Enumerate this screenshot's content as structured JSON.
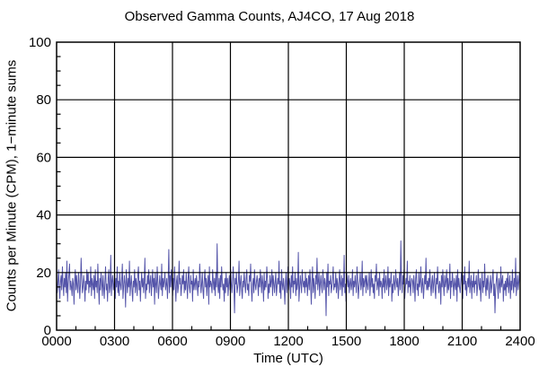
{
  "title": "Observed Gamma Counts, AJ4CO, 17 Aug 2018",
  "chart_data": {
    "type": "line",
    "title": "Observed Gamma Counts, AJ4CO, 17 Aug 2018",
    "xlabel": "Time (UTC)",
    "ylabel": "Counts per Minute (CPM), 1−minute sums",
    "x_tick_labels": [
      "0000",
      "0300",
      "0600",
      "0900",
      "1200",
      "1500",
      "1800",
      "2100",
      "2400"
    ],
    "xlim_minutes": [
      0,
      1440
    ],
    "x_major_step_minutes": 180,
    "x_minor_step_minutes": 60,
    "ylim": [
      0,
      100
    ],
    "y_major_step": 20,
    "y_minor_step": 5,
    "grid": true,
    "legend": "none",
    "colors": {
      "line": "#4545a2",
      "grid": "#000000",
      "text": "#000000",
      "background": "#ffffff"
    },
    "series": [
      {
        "name": "gamma counts, 1-minute sums",
        "sample_interval_minutes": 2,
        "approx_mean": 16.5,
        "approx_range": [
          5,
          31
        ],
        "values": [
          18,
          13,
          16,
          21,
          15,
          11,
          17,
          19,
          14,
          22,
          16,
          12,
          18,
          15,
          20,
          13,
          24,
          10,
          16,
          19,
          23,
          14,
          17,
          15,
          12,
          18,
          16,
          9,
          17,
          21,
          14,
          19,
          15,
          13,
          20,
          17,
          11,
          16,
          25,
          18,
          13,
          15,
          19,
          16,
          10,
          17,
          14,
          21,
          16,
          20,
          13,
          17,
          15,
          22,
          12,
          18,
          16,
          14,
          19,
          11,
          21,
          15,
          17,
          13,
          23,
          16,
          9,
          18,
          14,
          20,
          17,
          12,
          19,
          15,
          11,
          17,
          22,
          14,
          16,
          10,
          18,
          21,
          13,
          15,
          26,
          12,
          17,
          19,
          14,
          16,
          20,
          11,
          18,
          15,
          22,
          13,
          17,
          12,
          20,
          16,
          14,
          18,
          23,
          11,
          15,
          19,
          16,
          8,
          21,
          17,
          13,
          18,
          15,
          24,
          12,
          16,
          19,
          14,
          10,
          17,
          15,
          21,
          13,
          18,
          16,
          12,
          19,
          22,
          14,
          17,
          10,
          16,
          20,
          15,
          18,
          13,
          17,
          25,
          11,
          16,
          14,
          19,
          16,
          21,
          13,
          17,
          19,
          12,
          16,
          21,
          15,
          18,
          9,
          20,
          16,
          13,
          22,
          17,
          11,
          15,
          19,
          16,
          14,
          23,
          12,
          18,
          15,
          17,
          20,
          14,
          16,
          18,
          11,
          17,
          28,
          13,
          19,
          15,
          21,
          16,
          12,
          18,
          14,
          22,
          16,
          10,
          17,
          19,
          13,
          15,
          24,
          16,
          18,
          12,
          15,
          19,
          16,
          21,
          13,
          17,
          14,
          20,
          16,
          11,
          18,
          22,
          15,
          13,
          19,
          16,
          17,
          10,
          21,
          14,
          16,
          18,
          14,
          19,
          16,
          12,
          17,
          15,
          23,
          18,
          13,
          16,
          20,
          14,
          11,
          17,
          21,
          15,
          18,
          12,
          16,
          19,
          9,
          22,
          15,
          17,
          16,
          13,
          21,
          17,
          14,
          18,
          12,
          20,
          15,
          30,
          16,
          13,
          18,
          11,
          19,
          15,
          22,
          17,
          14,
          16,
          10,
          18,
          13,
          20,
          15,
          18,
          12,
          16,
          19,
          14,
          21,
          16,
          13,
          17,
          22,
          15,
          6,
          18,
          16,
          20,
          13,
          15,
          17,
          24,
          12,
          16,
          19,
          14,
          11,
          17,
          15,
          20,
          16,
          13,
          18,
          21,
          14,
          16,
          12,
          19,
          17,
          23,
          15,
          10,
          16,
          18,
          13,
          21,
          16,
          14,
          17,
          19,
          16,
          12,
          18,
          15,
          21,
          17,
          13,
          19,
          16,
          10,
          20,
          14,
          17,
          15,
          22,
          18,
          11,
          16,
          13,
          19,
          15,
          17,
          21,
          12,
          19,
          16,
          13,
          17,
          20,
          12,
          15,
          18,
          16,
          24,
          13,
          17,
          11,
          21,
          16,
          14,
          18,
          15,
          9,
          17,
          20,
          13,
          16,
          22,
          14,
          18,
          16,
          11,
          19,
          15,
          22,
          13,
          17,
          16,
          20,
          12,
          18,
          14,
          16,
          27,
          10,
          15,
          19,
          16,
          13,
          21,
          17,
          15,
          17,
          13,
          20,
          15,
          18,
          12,
          16,
          19,
          14,
          21,
          16,
          9,
          17,
          22,
          13,
          18,
          15,
          11,
          19,
          16,
          25,
          14,
          17,
          20,
          12,
          16,
          19,
          15,
          13,
          21,
          17,
          14,
          18,
          16,
          5,
          20,
          15,
          23,
          12,
          17,
          16,
          19,
          13,
          15,
          18,
          22,
          14,
          16,
          15,
          20,
          13,
          18,
          16,
          11,
          17,
          21,
          14,
          16,
          19,
          12,
          18,
          15,
          26,
          13,
          16,
          10,
          20,
          17,
          15,
          19,
          13,
          16,
          18,
          14,
          16,
          21,
          12,
          17,
          15,
          19,
          16,
          13,
          22,
          18,
          11,
          15,
          17,
          20,
          14,
          16,
          24,
          12,
          18,
          15,
          17,
          19,
          13,
          19,
          16,
          14,
          17,
          20,
          12,
          16,
          21,
          15,
          18,
          13,
          16,
          11,
          19,
          17,
          23,
          14,
          16,
          18,
          12,
          20,
          15,
          17,
          16,
          11,
          18,
          15,
          21,
          13,
          17,
          19,
          14,
          16,
          22,
          12,
          18,
          15,
          17,
          20,
          10,
          16,
          13,
          19,
          16,
          14,
          21,
          17,
          15,
          18,
          12,
          16,
          20,
          14,
          31,
          17,
          13,
          19,
          16,
          21,
          11,
          15,
          18,
          16,
          24,
          13,
          17,
          15,
          19,
          12,
          16,
          18,
          17,
          13,
          19,
          16,
          10,
          18,
          21,
          14,
          16,
          12,
          20,
          15,
          17,
          22,
          13,
          16,
          18,
          11,
          15,
          19,
          16,
          25,
          14,
          17,
          14,
          18,
          15,
          21,
          16,
          12,
          17,
          19,
          13,
          16,
          20,
          14,
          11,
          18,
          16,
          22,
          15,
          13,
          17,
          16,
          9,
          19,
          15,
          21,
          16,
          12,
          19,
          15,
          17,
          21,
          13,
          18,
          14,
          16,
          23,
          11,
          17,
          15,
          20,
          16,
          12,
          18,
          16,
          14,
          19,
          10,
          21,
          15,
          18,
          15,
          13,
          17,
          20,
          16,
          11,
          19,
          16,
          22,
          14,
          17,
          12,
          16,
          18,
          15,
          24,
          13,
          16,
          19,
          11,
          17,
          15,
          20,
          13,
          17,
          16,
          19,
          12,
          15,
          21,
          16,
          14,
          18,
          10,
          16,
          20,
          13,
          17,
          15,
          23,
          16,
          12,
          18,
          14,
          19,
          16,
          11,
          16,
          19,
          13,
          15,
          18,
          21,
          12,
          16,
          6,
          14,
          17,
          20,
          15,
          11,
          18,
          16,
          13,
          22,
          15,
          17,
          19,
          10,
          16,
          14,
          17,
          12,
          18,
          15,
          20,
          13,
          16,
          19,
          11,
          17,
          14,
          21,
          16,
          13,
          18,
          15,
          25,
          12,
          16,
          19,
          14,
          17,
          20,
          16
        ]
      }
    ]
  }
}
